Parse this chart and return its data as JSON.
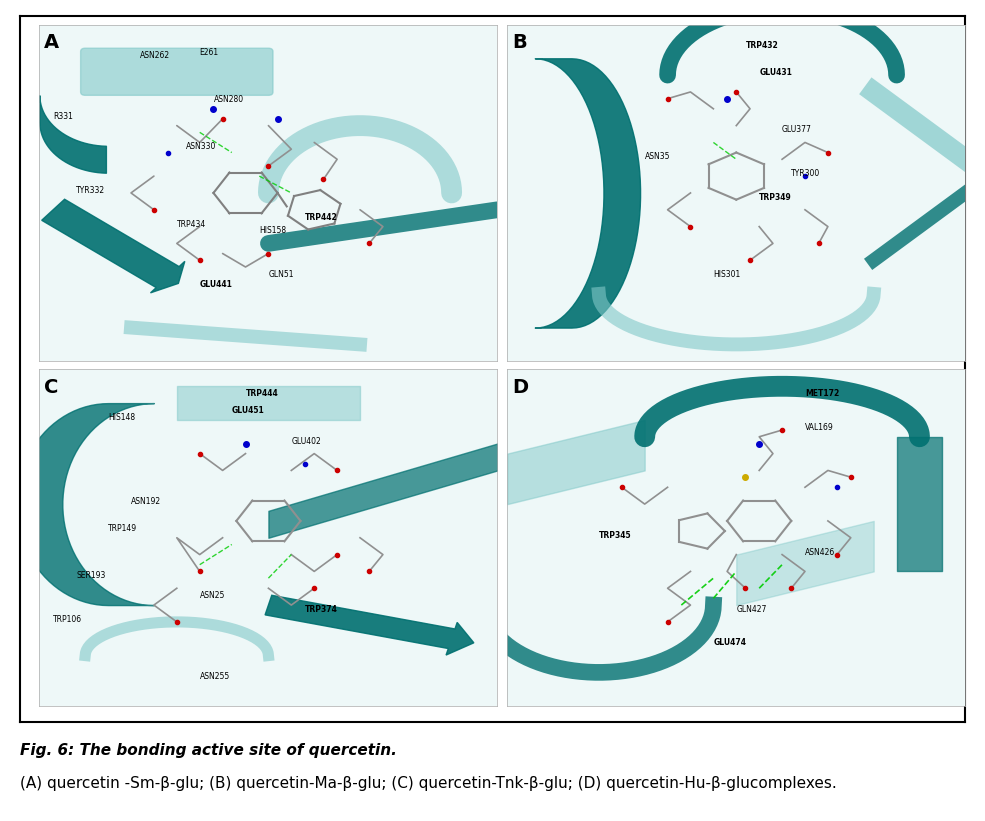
{
  "figure_title_line1": "Fig. 6: The bonding active site of quercetin.",
  "figure_title_line2": "(A) quercetin -Sm-β-glu; (B) quercetin-Ma-β-glu; (C) quercetin-Tnk-β-glu; (D) quercetin-Hu-β-glucomplexes.",
  "panel_labels": [
    "A",
    "B",
    "C",
    "D"
  ],
  "panel_label_fontsize": 14,
  "caption_fontsize": 11,
  "outer_border_color": "#000000",
  "background_color": "#ffffff",
  "panel_bg_color": "#ffffff",
  "teal_dark": "#007070",
  "teal_light": "#80c8c8",
  "fig_width": 9.85,
  "fig_height": 8.21
}
